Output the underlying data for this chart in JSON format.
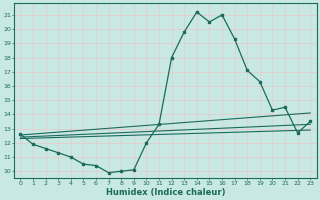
{
  "xlabel": "Humidex (Indice chaleur)",
  "background_color": "#c8e8e4",
  "grid_color": "#e8c8c8",
  "line_color": "#1a6b5a",
  "xlim": [
    -0.5,
    23.5
  ],
  "ylim": [
    9.5,
    21.8
  ],
  "xtick_vals": [
    0,
    1,
    2,
    3,
    4,
    5,
    6,
    7,
    8,
    9,
    10,
    11,
    12,
    13,
    14,
    15,
    16,
    17,
    18,
    19,
    20,
    21,
    22,
    23
  ],
  "ytick_vals": [
    10,
    11,
    12,
    13,
    14,
    15,
    16,
    17,
    18,
    19,
    20,
    21
  ],
  "main_x": [
    0,
    1,
    2,
    3,
    4,
    5,
    6,
    7,
    8,
    9,
    10,
    11,
    12,
    13,
    14,
    15,
    16,
    17,
    18,
    19,
    20,
    21,
    22,
    23
  ],
  "main_y": [
    12.6,
    11.9,
    11.6,
    11.3,
    11.0,
    10.5,
    10.4,
    9.9,
    10.0,
    10.1,
    12.0,
    13.3,
    18.0,
    19.8,
    21.2,
    20.5,
    21.0,
    19.3,
    17.1,
    16.3,
    14.3,
    14.5,
    12.7,
    13.5
  ],
  "trend1_x": [
    0,
    23
  ],
  "trend1_y": [
    12.55,
    14.1
  ],
  "trend2_x": [
    0,
    23
  ],
  "trend2_y": [
    12.4,
    13.3
  ],
  "trend3_x": [
    0,
    23
  ],
  "trend3_y": [
    12.3,
    12.9
  ]
}
